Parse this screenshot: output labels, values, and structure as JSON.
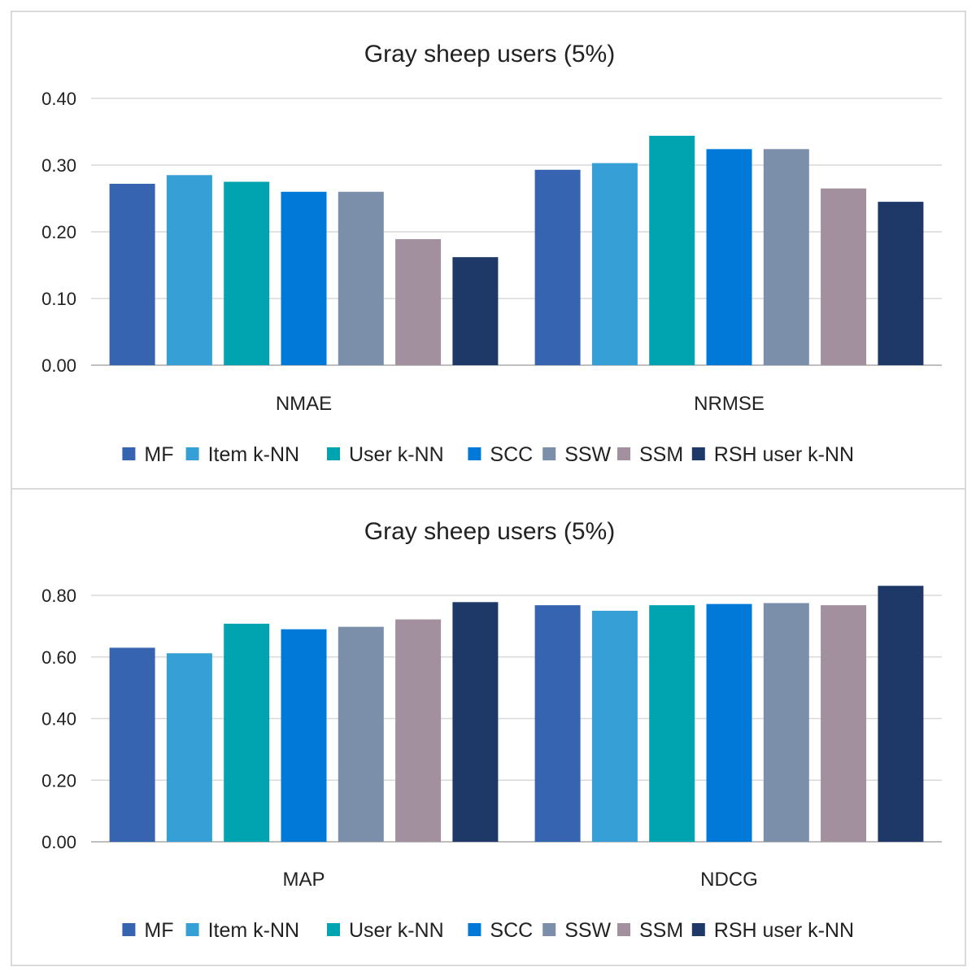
{
  "chart_data": [
    {
      "type": "bar",
      "title": "Gray sheep users (5%)",
      "categories": [
        "NMAE",
        "NRMSE"
      ],
      "ylim": [
        0,
        0.4
      ],
      "yticks": [
        "0.00",
        "0.10",
        "0.20",
        "0.30",
        "0.40"
      ],
      "grid": true,
      "legend_position": "bottom",
      "series": [
        {
          "name": "MF",
          "color": "#3764B0",
          "values": [
            0.272,
            0.293
          ]
        },
        {
          "name": "Item k-NN",
          "color": "#359FD6",
          "values": [
            0.285,
            0.303
          ]
        },
        {
          "name": "User k-NN",
          "color": "#00A4B0",
          "values": [
            0.275,
            0.344
          ]
        },
        {
          "name": "SCC",
          "color": "#0079D9",
          "values": [
            0.26,
            0.324
          ]
        },
        {
          "name": "SSW",
          "color": "#7B8FAB",
          "values": [
            0.26,
            0.324
          ]
        },
        {
          "name": "SSM",
          "color": "#A3909E",
          "values": [
            0.189,
            0.265
          ]
        },
        {
          "name": "RSH user k-NN",
          "color": "#1E3968",
          "values": [
            0.162,
            0.245
          ]
        }
      ]
    },
    {
      "type": "bar",
      "title": "Gray sheep users (5%)",
      "categories": [
        "MAP",
        "NDCG"
      ],
      "ylim": [
        0,
        0.8
      ],
      "yticks": [
        "0.00",
        "0.20",
        "0.40",
        "0.60",
        "0.80"
      ],
      "grid": true,
      "legend_position": "bottom",
      "series": [
        {
          "name": "MF",
          "color": "#3764B0",
          "values": [
            0.63,
            0.768
          ]
        },
        {
          "name": "Item k-NN",
          "color": "#359FD6",
          "values": [
            0.612,
            0.75
          ]
        },
        {
          "name": "User k-NN",
          "color": "#00A4B0",
          "values": [
            0.708,
            0.768
          ]
        },
        {
          "name": "SCC",
          "color": "#0079D9",
          "values": [
            0.69,
            0.772
          ]
        },
        {
          "name": "SSW",
          "color": "#7B8FAB",
          "values": [
            0.698,
            0.775
          ]
        },
        {
          "name": "SSM",
          "color": "#A3909E",
          "values": [
            0.722,
            0.768
          ]
        },
        {
          "name": "RSH user k-NN",
          "color": "#1E3968",
          "values": [
            0.778,
            0.831
          ]
        }
      ]
    }
  ]
}
